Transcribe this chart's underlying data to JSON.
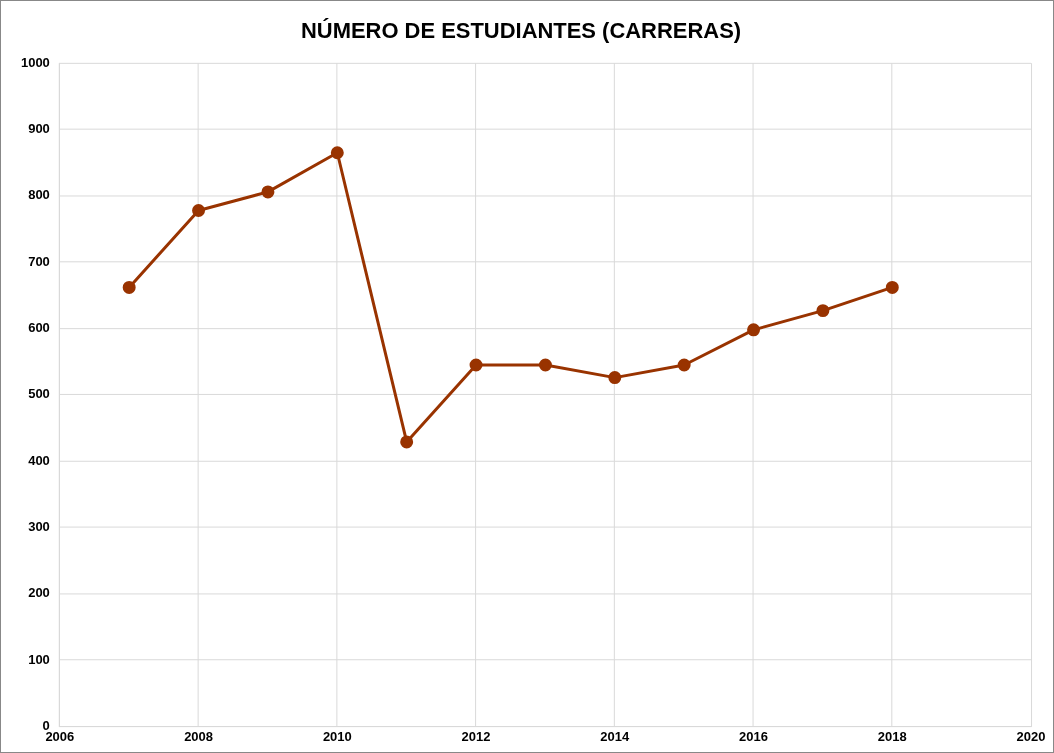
{
  "chart_data": {
    "type": "line",
    "title": "NÚMERO DE ESTUDIANTES (CARRERAS)",
    "x": [
      2007,
      2008,
      2009,
      2010,
      2011,
      2012,
      2013,
      2014,
      2015,
      2016,
      2017,
      2018
    ],
    "series": [
      {
        "color": "#993300",
        "values": [
          662,
          778,
          806,
          865,
          429,
          545,
          545,
          526,
          545,
          598,
          627,
          662
        ]
      }
    ],
    "xlim": [
      2006,
      2020
    ],
    "xticks": [
      2006,
      2008,
      2010,
      2012,
      2014,
      2016,
      2018,
      2020
    ],
    "ylim": [
      0,
      1000
    ],
    "yticks": [
      0,
      100,
      200,
      300,
      400,
      500,
      600,
      700,
      800,
      900,
      1000
    ],
    "grid": true,
    "marker": "circle",
    "line_style": "solid",
    "legend": false
  }
}
